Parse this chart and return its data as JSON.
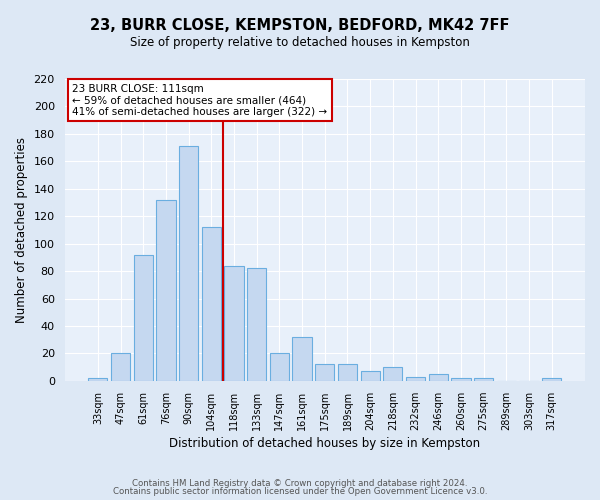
{
  "title": "23, BURR CLOSE, KEMPSTON, BEDFORD, MK42 7FF",
  "subtitle": "Size of property relative to detached houses in Kempston",
  "xlabel": "Distribution of detached houses by size in Kempston",
  "ylabel": "Number of detached properties",
  "bar_labels": [
    "33sqm",
    "47sqm",
    "61sqm",
    "76sqm",
    "90sqm",
    "104sqm",
    "118sqm",
    "133sqm",
    "147sqm",
    "161sqm",
    "175sqm",
    "189sqm",
    "204sqm",
    "218sqm",
    "232sqm",
    "246sqm",
    "260sqm",
    "275sqm",
    "289sqm",
    "303sqm",
    "317sqm"
  ],
  "bar_values": [
    2,
    20,
    92,
    132,
    171,
    112,
    84,
    82,
    20,
    32,
    12,
    12,
    7,
    10,
    3,
    5,
    2,
    2,
    0,
    0,
    2
  ],
  "bar_color": "#c5d8f0",
  "bar_edge_color": "#6aaee0",
  "ylim": [
    0,
    220
  ],
  "yticks": [
    0,
    20,
    40,
    60,
    80,
    100,
    120,
    140,
    160,
    180,
    200,
    220
  ],
  "vline_x": 5.5,
  "vline_color": "#cc0000",
  "annotation_text": "23 BURR CLOSE: 111sqm\n← 59% of detached houses are smaller (464)\n41% of semi-detached houses are larger (322) →",
  "annotation_box_color": "#cc0000",
  "footer_line1": "Contains HM Land Registry data © Crown copyright and database right 2024.",
  "footer_line2": "Contains public sector information licensed under the Open Government Licence v3.0.",
  "bg_color": "#dde8f5",
  "plot_bg_color": "#e8f0fa",
  "grid_color": "#ffffff"
}
